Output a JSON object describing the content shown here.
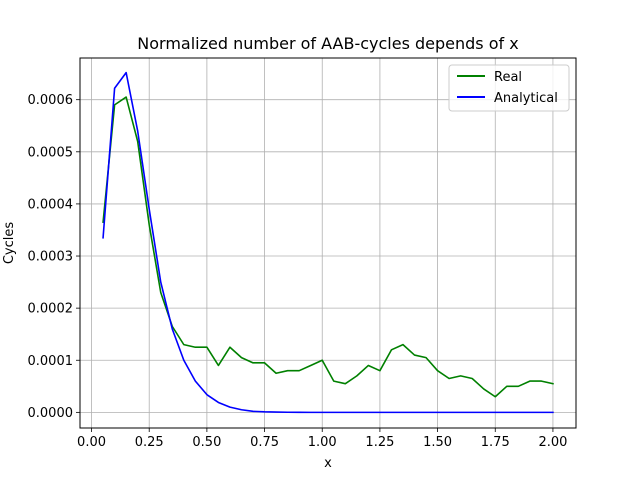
{
  "chart_data": {
    "type": "line",
    "title": "Normalized number of AAB-cycles depends of x",
    "xlabel": "x",
    "ylabel": "Cycles",
    "xlim": [
      -0.05,
      2.1
    ],
    "ylim": [
      -3e-05,
      0.00068
    ],
    "xticks": [
      0.0,
      0.25,
      0.5,
      0.75,
      1.0,
      1.25,
      1.5,
      1.75,
      2.0
    ],
    "xtick_labels": [
      "0.00",
      "0.25",
      "0.50",
      "0.75",
      "1.00",
      "1.25",
      "1.50",
      "1.75",
      "2.00"
    ],
    "yticks": [
      0.0,
      0.0001,
      0.0002,
      0.0003,
      0.0004,
      0.0005,
      0.0006
    ],
    "ytick_labels": [
      "0.0000",
      "0.0001",
      "0.0002",
      "0.0003",
      "0.0004",
      "0.0005",
      "0.0006"
    ],
    "grid": true,
    "legend_position": "top-right",
    "x": [
      0.05,
      0.1,
      0.15,
      0.2,
      0.25,
      0.3,
      0.35,
      0.4,
      0.45,
      0.5,
      0.55,
      0.6,
      0.65,
      0.7,
      0.75,
      0.8,
      0.85,
      0.9,
      0.95,
      1.0,
      1.05,
      1.1,
      1.15,
      1.2,
      1.25,
      1.3,
      1.35,
      1.4,
      1.45,
      1.5,
      1.55,
      1.6,
      1.65,
      1.7,
      1.75,
      1.8,
      1.85,
      1.9,
      1.95,
      2.0
    ],
    "series": [
      {
        "name": "Real",
        "color": "#008000",
        "values": [
          0.000365,
          0.00059,
          0.000605,
          0.00052,
          0.00036,
          0.00023,
          0.000165,
          0.00013,
          0.000125,
          0.000125,
          9e-05,
          0.000125,
          0.000105,
          9.5e-05,
          9.5e-05,
          7.5e-05,
          8e-05,
          8e-05,
          9e-05,
          0.0001,
          6e-05,
          5.5e-05,
          7e-05,
          9e-05,
          8e-05,
          0.00012,
          0.00013,
          0.00011,
          0.000105,
          8e-05,
          6.5e-05,
          7e-05,
          6.5e-05,
          4.5e-05,
          3e-05,
          5e-05,
          5e-05,
          6e-05,
          6e-05,
          5.5e-05
        ]
      },
      {
        "name": "Analytical",
        "color": "#0000ff",
        "values": [
          0.000335,
          0.000622,
          0.000652,
          0.00054,
          0.00039,
          0.00025,
          0.00016,
          0.0001,
          6e-05,
          3.4e-05,
          1.9e-05,
          1e-05,
          5e-06,
          2e-06,
          1e-06,
          5e-07,
          2e-07,
          1e-07,
          0.0,
          0.0,
          0.0,
          0.0,
          0.0,
          0.0,
          0.0,
          0.0,
          0.0,
          0.0,
          0.0,
          0.0,
          0.0,
          0.0,
          0.0,
          0.0,
          0.0,
          0.0,
          0.0,
          0.0,
          0.0,
          0.0
        ]
      }
    ]
  }
}
